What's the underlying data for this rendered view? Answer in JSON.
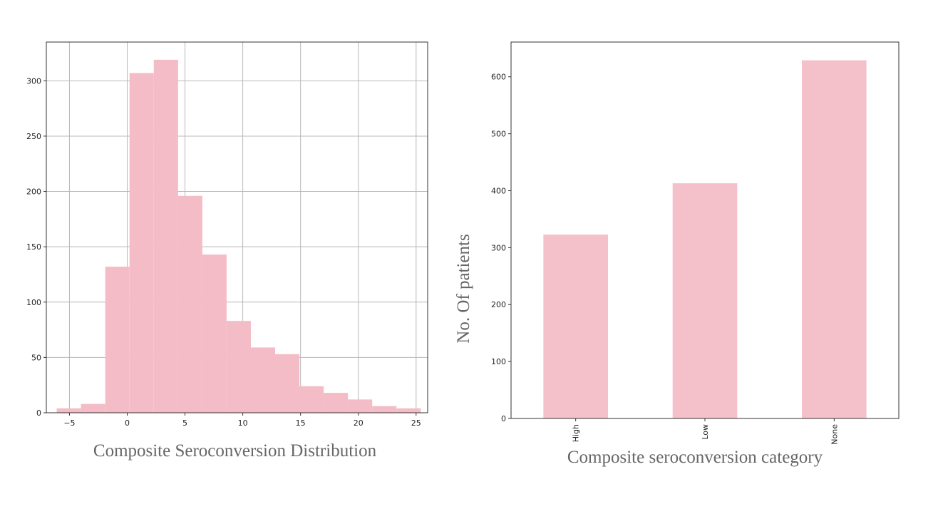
{
  "chart_data": [
    {
      "type": "bar",
      "title": "",
      "xlabel": "Composite Seroconversion Distribution",
      "ylabel": "",
      "grid": true,
      "bar_color": "#f4bcc6",
      "xlim": [
        -7,
        26
      ],
      "ylim": [
        0,
        335
      ],
      "xticks": [
        -5,
        0,
        5,
        10,
        15,
        20,
        25
      ],
      "yticks": [
        0,
        50,
        100,
        150,
        200,
        250,
        300
      ],
      "bins": [
        {
          "x0": -6.1,
          "x1": -4.0,
          "count": 4
        },
        {
          "x0": -4.0,
          "x1": -1.9,
          "count": 8
        },
        {
          "x0": -1.9,
          "x1": 0.2,
          "count": 132
        },
        {
          "x0": 0.2,
          "x1": 2.3,
          "count": 307
        },
        {
          "x0": 2.3,
          "x1": 4.4,
          "count": 319
        },
        {
          "x0": 4.4,
          "x1": 6.5,
          "count": 196
        },
        {
          "x0": 6.5,
          "x1": 8.6,
          "count": 143
        },
        {
          "x0": 8.6,
          "x1": 10.7,
          "count": 83
        },
        {
          "x0": 10.7,
          "x1": 12.8,
          "count": 59
        },
        {
          "x0": 12.8,
          "x1": 14.9,
          "count": 53
        },
        {
          "x0": 14.9,
          "x1": 17.0,
          "count": 24
        },
        {
          "x0": 17.0,
          "x1": 19.1,
          "count": 18
        },
        {
          "x0": 19.1,
          "x1": 21.2,
          "count": 12
        },
        {
          "x0": 21.2,
          "x1": 23.3,
          "count": 6
        },
        {
          "x0": 23.3,
          "x1": 25.4,
          "count": 4
        }
      ]
    },
    {
      "type": "bar",
      "title": "",
      "xlabel": "Composite seroconversion category",
      "ylabel": "No. Of patients",
      "grid": false,
      "bar_color": "#f4c1cb",
      "ylim": [
        0,
        661
      ],
      "yticks": [
        0,
        100,
        200,
        300,
        400,
        500,
        600
      ],
      "categories": [
        "High",
        "Low",
        "None"
      ],
      "values": [
        323,
        413,
        629
      ]
    }
  ]
}
